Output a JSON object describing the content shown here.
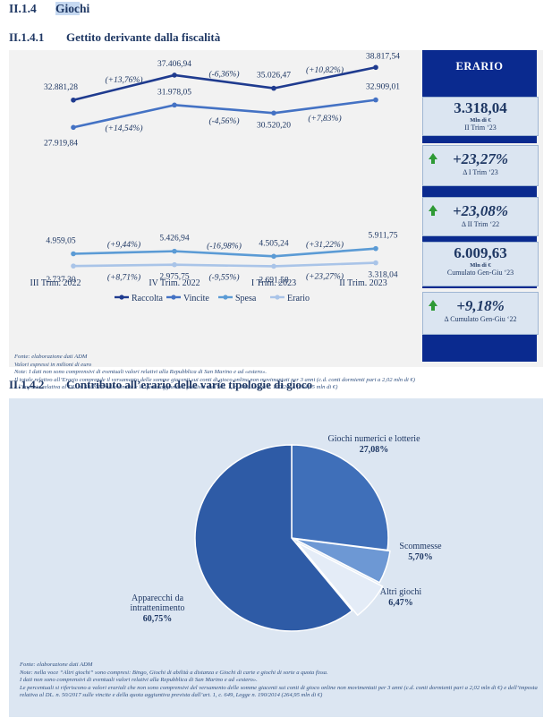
{
  "section": {
    "number": "II.1.4",
    "title_prefix": "Gioc",
    "title_suffix": "hi"
  },
  "sub1": {
    "number": "II.1.4.1",
    "title": "Gettito derivante dalla fiscalità"
  },
  "sub2": {
    "number": "II.1.4.2",
    "title": "Contributo all’erario delle varie tipologie di gioco"
  },
  "chart_data": [
    {
      "type": "line",
      "categories": [
        "III Trim. 2022",
        "IV Trim. 2022",
        "I Trim. 2023",
        "II Trim. 2023"
      ],
      "series": [
        {
          "name": "Raccolta",
          "values": [
            32881.28,
            37406.94,
            35026.47,
            38817.54
          ],
          "labels": [
            "32.881,28",
            "37.406,94",
            "35.026,47",
            "38.817,54"
          ],
          "changes": [
            "(+13,76%)",
            "(-6,36%)",
            "(+10,82%)"
          ],
          "color": "#1f3b8f"
        },
        {
          "name": "Vincite",
          "values": [
            27919.84,
            31978.05,
            30520.2,
            32909.01
          ],
          "labels": [
            "27.919,84",
            "31.978,05",
            "30.520,20",
            "32.909,01"
          ],
          "changes": [
            "(+14,54%)",
            "(-4,56%)",
            "(+7,83%)"
          ],
          "color": "#4472c4"
        },
        {
          "name": "Spesa",
          "values": [
            4959.05,
            5426.94,
            4505.24,
            5911.75
          ],
          "labels": [
            "4.959,05",
            "5.426,94",
            "4.505,24",
            "5.911,75"
          ],
          "changes": [
            "(+9,44%)",
            "(-16,98%)",
            "(+31,22%)"
          ],
          "color": "#5b9bd5"
        },
        {
          "name": "Erario",
          "values": [
            2737.3,
            2975.75,
            2691.58,
            3318.04
          ],
          "labels": [
            "2.737,30",
            "2.975,75",
            "2.691,58",
            "3.318,04"
          ],
          "changes": [
            "(+8,71%)",
            "(-9,55%)",
            "(+23,27%)"
          ],
          "color": "#a9c4e8"
        }
      ],
      "legend": "bottom"
    },
    {
      "type": "pie",
      "slices": [
        {
          "label": "Giochi numerici e lotterie",
          "pct_label": "27,08%",
          "value": 27.08,
          "color": "#3f6fb9"
        },
        {
          "label": "Scommesse",
          "pct_label": "5,70%",
          "value": 5.7,
          "color": "#6d98d4"
        },
        {
          "label": "Altri giochi",
          "pct_label": "6,47%",
          "value": 6.47,
          "color": "#e4ecf7"
        },
        {
          "label": "Apparecchi da intrattenimento",
          "label_line1": "Apparecchi da",
          "label_line2": "intrattenimento",
          "pct_label": "60,75%",
          "value": 60.75,
          "color": "#2e5ba6"
        }
      ]
    }
  ],
  "erario": {
    "title": "ERARIO",
    "box1": {
      "value": "3.318,04",
      "unit": "Mln di €",
      "sub": "II Trim ‘23"
    },
    "box2": {
      "pct": "+23,27%",
      "sub": "Δ I Trim ‘23"
    },
    "box3": {
      "pct": "+23,08%",
      "sub": "Δ II Trim ‘22"
    },
    "box4": {
      "value": "6.009,63",
      "unit": "Mln di €",
      "sub": "Cumulato Gen-Giu ‘23"
    },
    "box5": {
      "pct": "+9,18%",
      "sub": "Δ Cumulato Gen-Giu ‘22"
    }
  },
  "notes1": [
    "Fonte: elaborazione dati ADM",
    "Valori espressi in milioni di euro",
    "Note: I dati non sono comprensivi di eventuali valori relativi alla Repubblica di San Marino e ad «estero».",
    "Il totale relativo all’Erario comprende il versamento delle somme giacenti sui conti di gioco online non movimentati per 3 anni (c.d. conti dormienti pari a 2,02 mln di €) e l’imposta relativa al DL. n. 50/2017 sulle vincite e la quota aggiuntiva prevista dall’art. 1, c. 649, Legge n. 190/2014 (264,95 mln di €)"
  ],
  "notes2": [
    "Fonte: elaborazione dati ADM",
    "Note: nella voce “Altri giochi” sono compresi: Bingo, Giochi di abilità a distanza e Giochi di carte e giochi di sorte a quota fissa.",
    " I dati non sono comprensivi di eventuali valori relativi alla Repubblica di San Marino e ad «estero».",
    "Le percentuali si riferiscono a valori erariali che non sono comprensivi del versamento delle somme giacenti sui conti di gioco online non movimentati per 3 anni (c.d. conti dormienti pari a 2,02 mln di €) e dell’imposta relativa al DL. n. 50/2017 sulle vincite e della quota aggiuntiva prevista dall’art. 1, c. 649, Legge n. 190/2014 (264,95 mln di €)"
  ]
}
